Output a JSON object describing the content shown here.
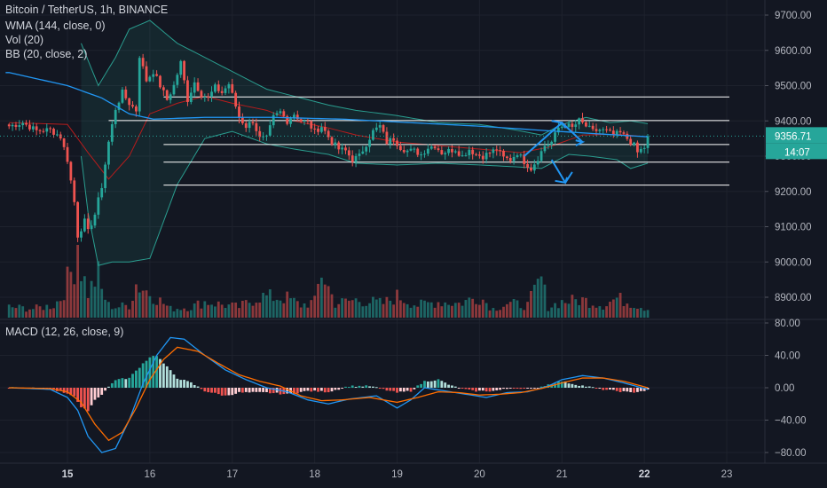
{
  "header": {
    "symbol_line": "Bitcoin / TetherUS, 1h, BINANCE",
    "indicators": [
      "WMA (144, close, 0)",
      "Vol (20)",
      "BB (20, close, 2)"
    ],
    "macd_label": "MACD (12, 26, close, 9)"
  },
  "chart_data": [
    {
      "type": "candlestick",
      "price_axis": {
        "ticks": [
          "9700.00",
          "9600.00",
          "9500.00",
          "9400.00",
          "9300.00",
          "9200.00",
          "9100.00",
          "9000.00",
          "8900.00"
        ],
        "values": [
          9700,
          9600,
          9500,
          9400,
          9300,
          9200,
          9100,
          9000,
          8900
        ],
        "ylim": [
          8865,
          9735
        ]
      },
      "time_axis": {
        "labels": [
          "15",
          "16",
          "17",
          "18",
          "19",
          "20",
          "21",
          "22",
          "23"
        ],
        "bold_labels": [
          "15",
          "22"
        ],
        "bar_index_of_labels": [
          0,
          24,
          48,
          72,
          96,
          120,
          144,
          168,
          192
        ],
        "first_bar_index": -17,
        "visible_bar_range": [
          -18,
          196
        ]
      },
      "last_price": "9356.71",
      "countdown": "14:07",
      "horizontal_levels": [
        9468,
        9401,
        9333,
        9283,
        9218
      ],
      "ohlc_anchor_closes": [
        [
          -17,
          9385
        ],
        [
          -13,
          9395
        ],
        [
          -9,
          9372
        ],
        [
          -5,
          9375
        ],
        [
          -2,
          9355
        ],
        [
          0,
          9290
        ],
        [
          2,
          9170
        ],
        [
          3,
          9075
        ],
        [
          5,
          9115
        ],
        [
          6,
          9085
        ],
        [
          8,
          9135
        ],
        [
          10,
          9215
        ],
        [
          12,
          9340
        ],
        [
          14,
          9435
        ],
        [
          16,
          9480
        ],
        [
          18,
          9450
        ],
        [
          20,
          9430
        ],
        [
          21,
          9585
        ],
        [
          23,
          9515
        ],
        [
          25,
          9540
        ],
        [
          27,
          9500
        ],
        [
          29,
          9460
        ],
        [
          31,
          9500
        ],
        [
          33,
          9565
        ],
        [
          35,
          9460
        ],
        [
          37,
          9510
        ],
        [
          39,
          9475
        ],
        [
          41,
          9465
        ],
        [
          43,
          9495
        ],
        [
          45,
          9480
        ],
        [
          47,
          9505
        ],
        [
          50,
          9410
        ],
        [
          52,
          9385
        ],
        [
          54,
          9400
        ],
        [
          56,
          9350
        ],
        [
          58,
          9350
        ],
        [
          60,
          9410
        ],
        [
          62,
          9425
        ],
        [
          64,
          9400
        ],
        [
          66,
          9420
        ],
        [
          68,
          9400
        ],
        [
          70,
          9395
        ],
        [
          72,
          9370
        ],
        [
          74,
          9385
        ],
        [
          76,
          9355
        ],
        [
          77,
          9340
        ],
        [
          79,
          9320
        ],
        [
          81,
          9315
        ],
        [
          83,
          9290
        ],
        [
          85,
          9300
        ],
        [
          87,
          9335
        ],
        [
          89,
          9370
        ],
        [
          91,
          9385
        ],
        [
          93,
          9340
        ],
        [
          95,
          9350
        ],
        [
          97,
          9325
        ],
        [
          99,
          9315
        ],
        [
          101,
          9315
        ],
        [
          103,
          9305
        ],
        [
          105,
          9325
        ],
        [
          107,
          9330
        ],
        [
          109,
          9310
        ],
        [
          111,
          9315
        ],
        [
          113,
          9320
        ],
        [
          115,
          9300
        ],
        [
          117,
          9320
        ],
        [
          119,
          9305
        ],
        [
          121,
          9300
        ],
        [
          123,
          9310
        ],
        [
          125,
          9320
        ],
        [
          127,
          9295
        ],
        [
          129,
          9290
        ],
        [
          131,
          9310
        ],
        [
          133,
          9285
        ],
        [
          135,
          9265
        ],
        [
          137,
          9295
        ],
        [
          139,
          9330
        ],
        [
          141,
          9340
        ],
        [
          143,
          9380
        ],
        [
          145,
          9390
        ],
        [
          147,
          9380
        ],
        [
          149,
          9400
        ],
        [
          151,
          9385
        ],
        [
          153,
          9370
        ],
        [
          155,
          9375
        ],
        [
          157,
          9370
        ],
        [
          159,
          9360
        ],
        [
          161,
          9365
        ],
        [
          163,
          9350
        ],
        [
          165,
          9330
        ],
        [
          166,
          9310
        ],
        [
          168,
          9325
        ],
        [
          169,
          9357
        ]
      ],
      "wma_anchors": [
        [
          -17,
          9537
        ],
        [
          0,
          9500
        ],
        [
          10,
          9465
        ],
        [
          18,
          9420
        ],
        [
          25,
          9405
        ],
        [
          40,
          9410
        ],
        [
          60,
          9410
        ],
        [
          80,
          9405
        ],
        [
          100,
          9395
        ],
        [
          120,
          9385
        ],
        [
          140,
          9372
        ],
        [
          160,
          9360
        ],
        [
          169,
          9355
        ]
      ],
      "bb_upper_anchors": [
        [
          4,
          9620
        ],
        [
          9,
          9500
        ],
        [
          14,
          9580
        ],
        [
          18,
          9660
        ],
        [
          24,
          9685
        ],
        [
          32,
          9620
        ],
        [
          40,
          9580
        ],
        [
          48,
          9540
        ],
        [
          58,
          9490
        ],
        [
          66,
          9470
        ],
        [
          76,
          9445
        ],
        [
          84,
          9430
        ],
        [
          96,
          9415
        ],
        [
          108,
          9395
        ],
        [
          120,
          9390
        ],
        [
          130,
          9375
        ],
        [
          138,
          9360
        ],
        [
          144,
          9390
        ],
        [
          151,
          9410
        ],
        [
          158,
          9395
        ],
        [
          164,
          9400
        ],
        [
          169,
          9392
        ]
      ],
      "bb_lower_anchors": [
        [
          4,
          9300
        ],
        [
          6,
          9140
        ],
        [
          9,
          8990
        ],
        [
          13,
          9000
        ],
        [
          18,
          9000
        ],
        [
          24,
          9010
        ],
        [
          32,
          9220
        ],
        [
          40,
          9350
        ],
        [
          48,
          9370
        ],
        [
          58,
          9335
        ],
        [
          66,
          9320
        ],
        [
          76,
          9305
        ],
        [
          84,
          9280
        ],
        [
          96,
          9275
        ],
        [
          108,
          9280
        ],
        [
          120,
          9275
        ],
        [
          130,
          9270
        ],
        [
          138,
          9265
        ],
        [
          146,
          9305
        ],
        [
          152,
          9300
        ],
        [
          160,
          9290
        ],
        [
          164,
          9265
        ],
        [
          169,
          9280
        ]
      ],
      "bb_mid_anchors": [
        [
          -17,
          9395
        ],
        [
          0,
          9390
        ],
        [
          6,
          9310
        ],
        [
          12,
          9235
        ],
        [
          18,
          9300
        ],
        [
          24,
          9420
        ],
        [
          32,
          9450
        ],
        [
          40,
          9470
        ],
        [
          48,
          9450
        ],
        [
          58,
          9430
        ],
        [
          66,
          9400
        ],
        [
          76,
          9380
        ],
        [
          84,
          9360
        ],
        [
          96,
          9340
        ],
        [
          108,
          9330
        ],
        [
          120,
          9320
        ],
        [
          132,
          9310
        ],
        [
          140,
          9325
        ],
        [
          150,
          9360
        ],
        [
          160,
          9362
        ],
        [
          169,
          9355
        ]
      ],
      "volume_anchors": [
        [
          -17,
          12
        ],
        [
          -10,
          10
        ],
        [
          -4,
          14
        ],
        [
          -2,
          22
        ],
        [
          0,
          42
        ],
        [
          2,
          60
        ],
        [
          3,
          90
        ],
        [
          4,
          55
        ],
        [
          6,
          28
        ],
        [
          9,
          48
        ],
        [
          10,
          30
        ],
        [
          12,
          14
        ],
        [
          14,
          12
        ],
        [
          18,
          14
        ],
        [
          20,
          38
        ],
        [
          24,
          28
        ],
        [
          30,
          10
        ],
        [
          36,
          12
        ],
        [
          40,
          18
        ],
        [
          46,
          14
        ],
        [
          50,
          12
        ],
        [
          56,
          24
        ],
        [
          64,
          22
        ],
        [
          68,
          14
        ],
        [
          72,
          18
        ],
        [
          74,
          52
        ],
        [
          78,
          16
        ],
        [
          84,
          20
        ],
        [
          92,
          16
        ],
        [
          96,
          24
        ],
        [
          102,
          14
        ],
        [
          108,
          18
        ],
        [
          114,
          16
        ],
        [
          120,
          24
        ],
        [
          124,
          10
        ],
        [
          128,
          16
        ],
        [
          134,
          14
        ],
        [
          138,
          44
        ],
        [
          140,
          12
        ],
        [
          144,
          18
        ],
        [
          150,
          20
        ],
        [
          156,
          14
        ],
        [
          160,
          22
        ],
        [
          166,
          14
        ],
        [
          169,
          10
        ]
      ],
      "annotation_arrows": [
        {
          "type": "up",
          "color": "#2196f3"
        },
        {
          "type": "down",
          "color": "#2196f3"
        }
      ],
      "colors": {
        "up": "#26a69a",
        "down": "#ef5350",
        "wma": "#2196f3",
        "bb_band": "#2a9d8f",
        "bb_mid": "#b71c1c",
        "levels": "#ffffff",
        "background": "#131722",
        "last_price_badge": "#26a69a"
      }
    },
    {
      "type": "macd",
      "axis": {
        "ticks": [
          "80.00",
          "40.00",
          "0.00",
          "−40.00",
          "−80.00"
        ],
        "values": [
          80,
          40,
          0,
          -40,
          -80
        ],
        "ylim": [
          -95,
          80
        ]
      },
      "macd_anchors": [
        [
          -17,
          0
        ],
        [
          -5,
          -2
        ],
        [
          0,
          -12
        ],
        [
          3,
          -28
        ],
        [
          6,
          -60
        ],
        [
          10,
          -80
        ],
        [
          14,
          -75
        ],
        [
          18,
          -40
        ],
        [
          22,
          5
        ],
        [
          26,
          40
        ],
        [
          30,
          62
        ],
        [
          34,
          60
        ],
        [
          40,
          40
        ],
        [
          46,
          22
        ],
        [
          52,
          10
        ],
        [
          58,
          0
        ],
        [
          64,
          -5
        ],
        [
          70,
          -15
        ],
        [
          76,
          -20
        ],
        [
          82,
          -14
        ],
        [
          90,
          -10
        ],
        [
          96,
          -25
        ],
        [
          100,
          -15
        ],
        [
          104,
          0
        ],
        [
          110,
          -4
        ],
        [
          116,
          -8
        ],
        [
          122,
          -12
        ],
        [
          128,
          -6
        ],
        [
          134,
          -5
        ],
        [
          140,
          2
        ],
        [
          144,
          10
        ],
        [
          150,
          15
        ],
        [
          156,
          12
        ],
        [
          162,
          6
        ],
        [
          169,
          -2
        ]
      ],
      "signal_anchors": [
        [
          -17,
          0
        ],
        [
          -5,
          -1
        ],
        [
          0,
          -5
        ],
        [
          4,
          -18
        ],
        [
          8,
          -45
        ],
        [
          12,
          -65
        ],
        [
          16,
          -55
        ],
        [
          20,
          -25
        ],
        [
          24,
          10
        ],
        [
          28,
          35
        ],
        [
          32,
          50
        ],
        [
          38,
          45
        ],
        [
          44,
          30
        ],
        [
          50,
          16
        ],
        [
          56,
          8
        ],
        [
          62,
          2
        ],
        [
          68,
          -10
        ],
        [
          74,
          -16
        ],
        [
          80,
          -15
        ],
        [
          88,
          -12
        ],
        [
          96,
          -18
        ],
        [
          102,
          -12
        ],
        [
          108,
          -5
        ],
        [
          114,
          -6
        ],
        [
          120,
          -9
        ],
        [
          126,
          -8
        ],
        [
          132,
          -6
        ],
        [
          138,
          -1
        ],
        [
          144,
          6
        ],
        [
          150,
          12
        ],
        [
          156,
          12
        ],
        [
          162,
          8
        ],
        [
          169,
          0
        ]
      ],
      "hist_anchors": [
        [
          -17,
          0
        ],
        [
          -5,
          -1
        ],
        [
          0,
          -7
        ],
        [
          2,
          -10
        ],
        [
          4,
          -25
        ],
        [
          6,
          -28
        ],
        [
          8,
          -15
        ],
        [
          10,
          -8
        ],
        [
          14,
          10
        ],
        [
          18,
          12
        ],
        [
          22,
          30
        ],
        [
          24,
          38
        ],
        [
          26,
          40
        ],
        [
          28,
          30
        ],
        [
          32,
          12
        ],
        [
          36,
          6
        ],
        [
          40,
          -4
        ],
        [
          46,
          -10
        ],
        [
          50,
          -6
        ],
        [
          58,
          -6
        ],
        [
          64,
          -8
        ],
        [
          70,
          -4
        ],
        [
          76,
          -5
        ],
        [
          82,
          2
        ],
        [
          88,
          2
        ],
        [
          92,
          -2
        ],
        [
          96,
          -6
        ],
        [
          100,
          -4
        ],
        [
          104,
          8
        ],
        [
          108,
          10
        ],
        [
          112,
          2
        ],
        [
          118,
          -4
        ],
        [
          124,
          -4
        ],
        [
          130,
          0
        ],
        [
          136,
          -1
        ],
        [
          140,
          4
        ],
        [
          144,
          8
        ],
        [
          148,
          4
        ],
        [
          152,
          1
        ],
        [
          156,
          -2
        ],
        [
          160,
          -4
        ],
        [
          164,
          -6
        ],
        [
          169,
          -3
        ]
      ],
      "colors": {
        "macd": "#2196f3",
        "signal": "#ff6d00",
        "hist_up": "#26a69a",
        "hist_down": "#ef5350"
      }
    }
  ]
}
